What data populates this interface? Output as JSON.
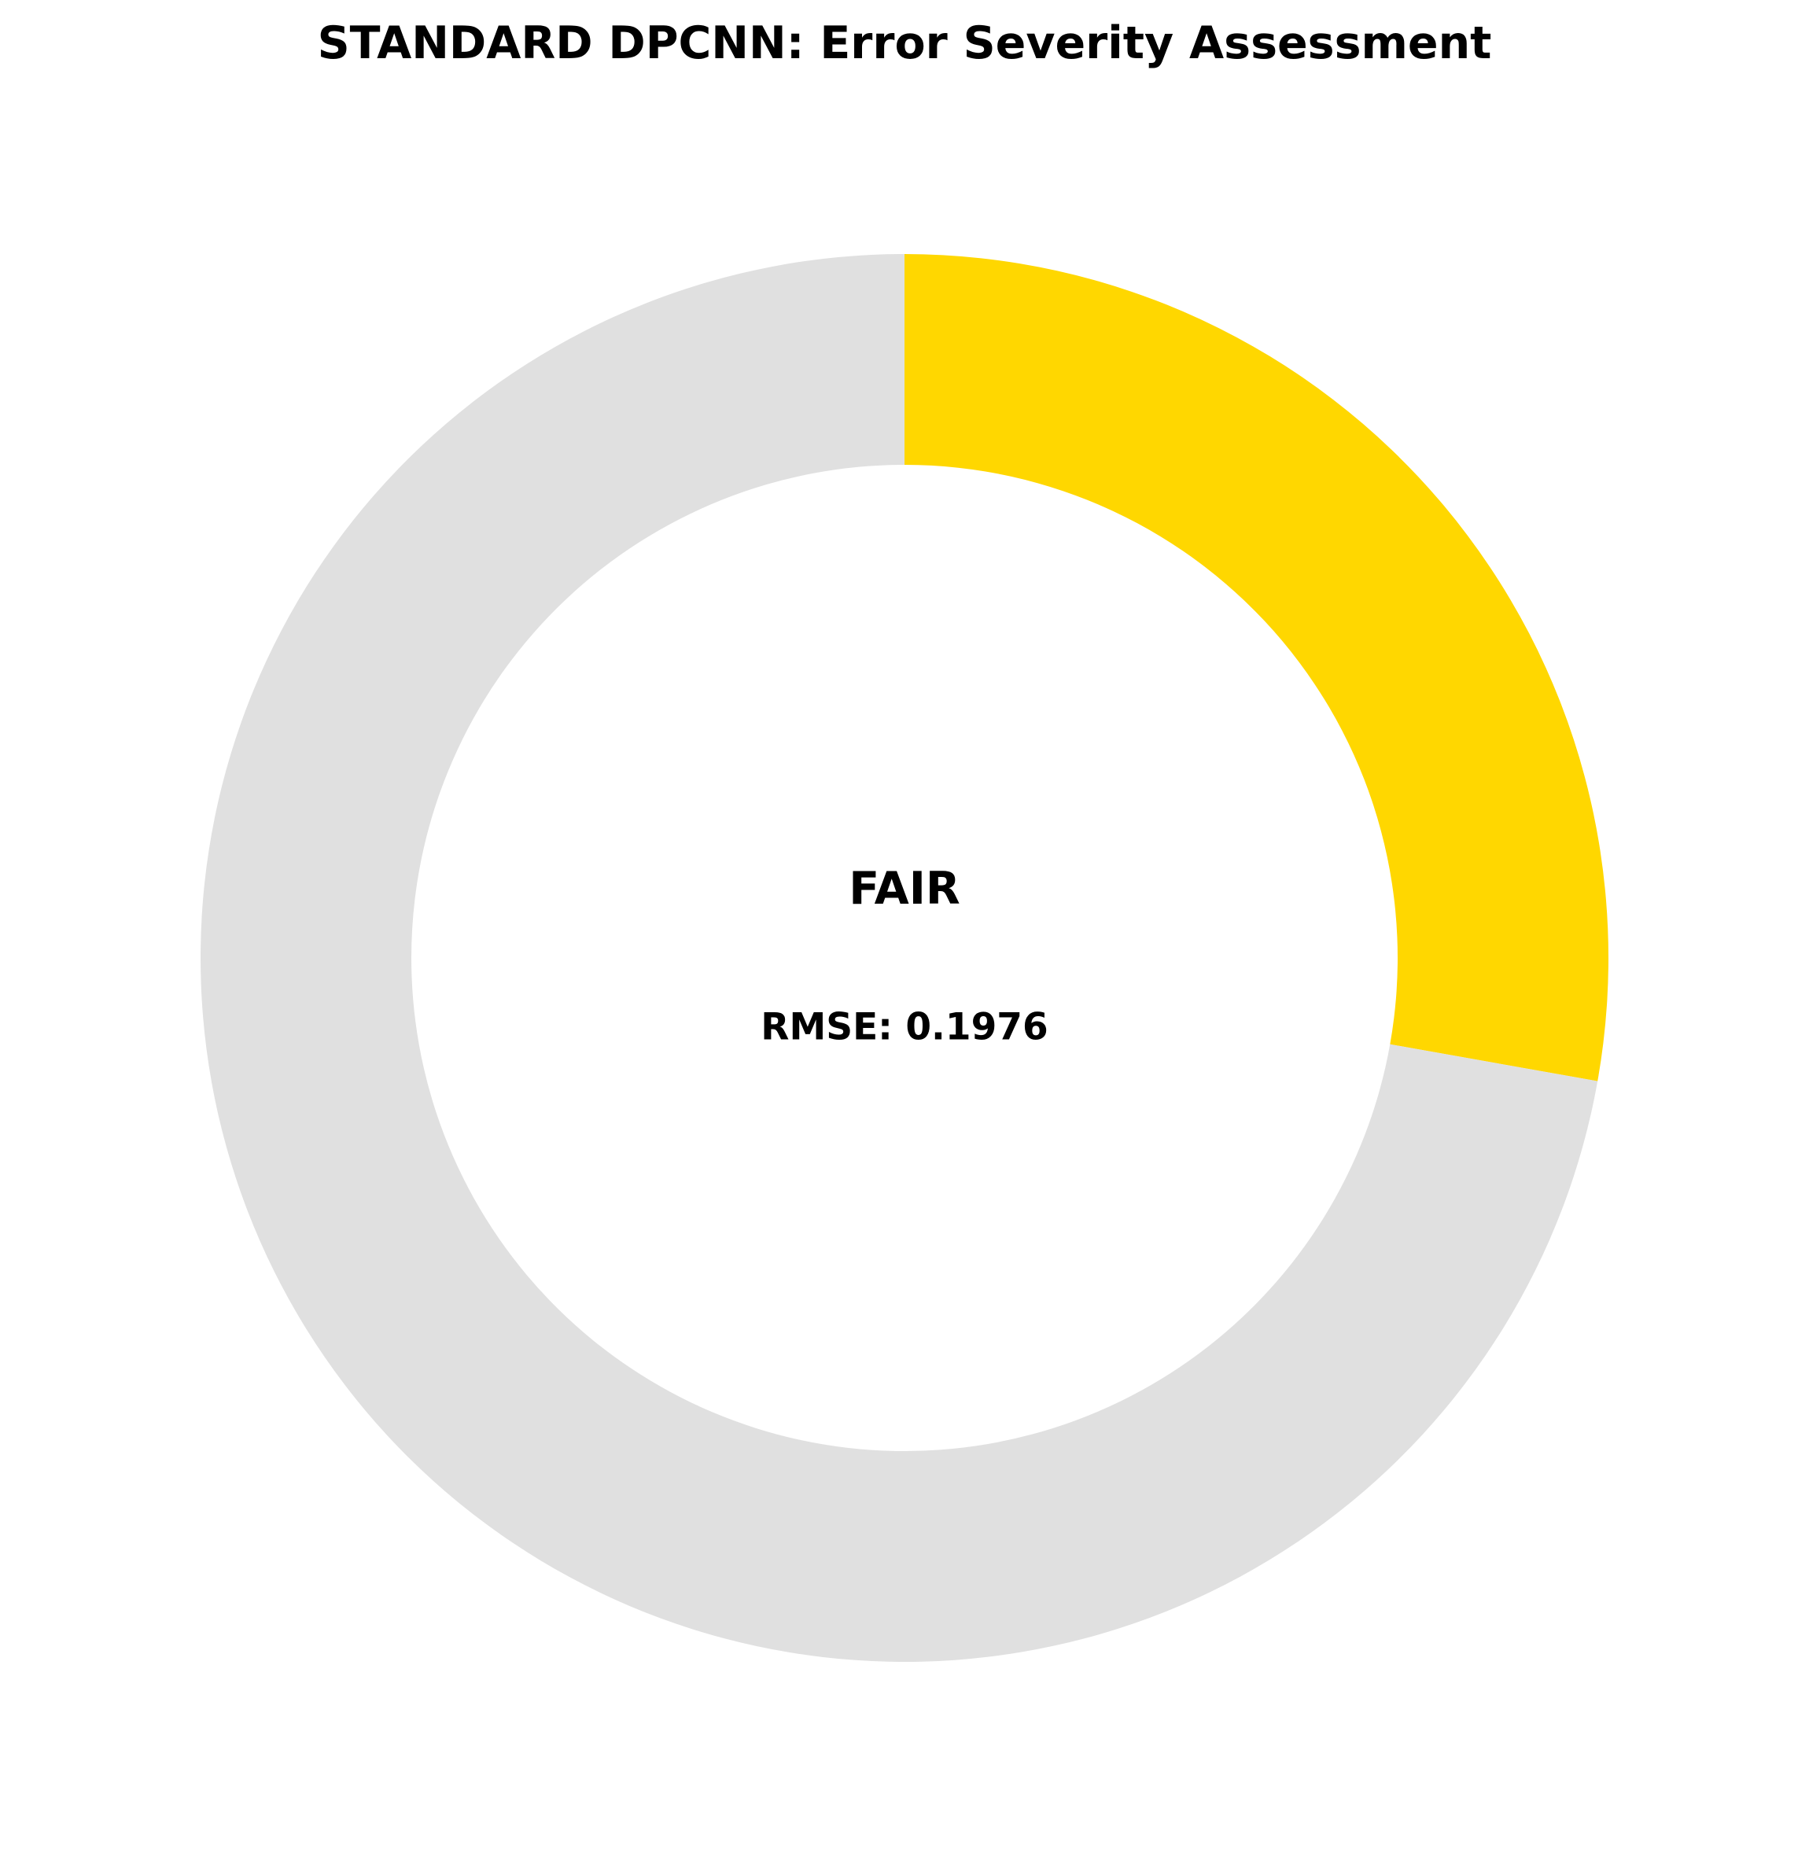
{
  "chart_data": {
    "type": "pie",
    "title": "STANDARD DPCNN: Error Severity Assessment",
    "style": "donut",
    "slices": [
      {
        "label": "",
        "fraction": 0.278,
        "color": "#FFD700"
      },
      {
        "label": "",
        "fraction": 0.722,
        "color": "#E0E0E0"
      }
    ],
    "start_position": "top",
    "direction": "clockwise",
    "center_text": {
      "rating": "FAIR",
      "metric": "RMSE: 0.1976"
    }
  }
}
